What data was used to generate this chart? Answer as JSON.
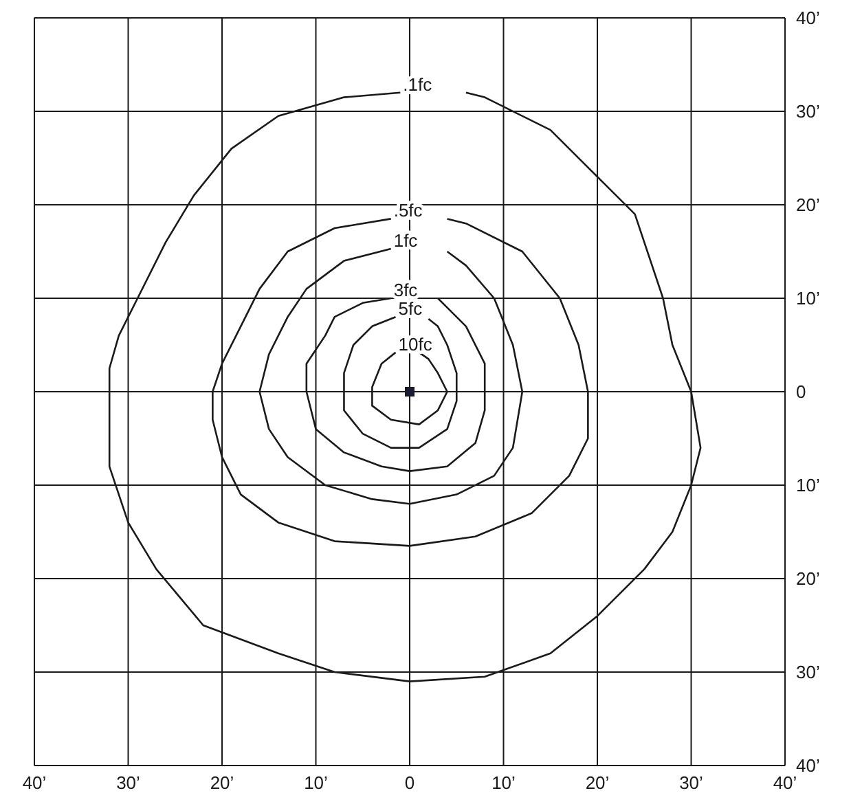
{
  "chart_data": {
    "type": "line",
    "xlim": [
      -40,
      40
    ],
    "ylim": [
      -40,
      40
    ],
    "xticks": [
      {
        "value": -40,
        "label": "40’"
      },
      {
        "value": -30,
        "label": "30’"
      },
      {
        "value": -20,
        "label": "20’"
      },
      {
        "value": -10,
        "label": "10’"
      },
      0,
      {
        "value": 10,
        "label": "10’"
      },
      {
        "value": 20,
        "label": "20’"
      },
      {
        "value": 30,
        "label": "30’"
      },
      {
        "value": 40,
        "label": "40’"
      }
    ],
    "yticks": [
      {
        "value": -40,
        "label": "40’"
      },
      {
        "value": -30,
        "label": "30’"
      },
      {
        "value": -20,
        "label": "20’"
      },
      {
        "value": -10,
        "label": "10’"
      },
      0,
      {
        "value": 10,
        "label": "10’"
      },
      {
        "value": 20,
        "label": "20’"
      },
      {
        "value": 30,
        "label": "30’"
      },
      {
        "value": 40,
        "label": "40’"
      }
    ],
    "grid": true,
    "legend": false,
    "marker": "none",
    "line_style": "solid",
    "series": [
      {
        "name": ".1fc",
        "color": "#1a1a1a",
        "x": [
          -1,
          -7,
          -14,
          -19,
          -23,
          -26,
          -29,
          -31,
          -32,
          -32,
          -32,
          -30,
          -27,
          -22,
          -14,
          -8,
          0,
          8,
          15,
          20,
          25,
          28,
          30,
          31,
          30,
          28,
          27,
          24,
          19,
          15,
          8,
          6
        ],
        "values": [
          32,
          31.5,
          29.5,
          26,
          21,
          16,
          10,
          6,
          2.5,
          -2,
          -8,
          -14,
          -19,
          -25,
          -28,
          -30,
          -31,
          -30.5,
          -28,
          -24,
          -19,
          -15,
          -10,
          -6,
          0,
          5,
          10,
          19,
          24,
          28,
          31.5,
          32
        ]
      },
      {
        "name": ".5fc",
        "color": "#1a1a1a",
        "x": [
          -2,
          -8,
          -13,
          -16,
          -18,
          -20,
          -21,
          -21,
          -20,
          -18,
          -14,
          -8,
          0,
          7,
          13,
          17,
          19,
          19,
          18,
          16,
          12,
          6,
          4
        ],
        "values": [
          18.5,
          17.5,
          15,
          11,
          7,
          3,
          0,
          -3,
          -7,
          -11,
          -14,
          -16,
          -16.5,
          -15.5,
          -13,
          -9,
          -5,
          0,
          5,
          10,
          15,
          18,
          18.5
        ]
      },
      {
        "name": "1fc",
        "color": "#1a1a1a",
        "x": [
          -2,
          -7,
          -11,
          -13,
          -15,
          -16,
          -15,
          -13,
          -9,
          -4,
          0,
          5,
          9,
          11,
          12,
          11,
          9,
          6,
          4
        ],
        "values": [
          15.3,
          14,
          11,
          8,
          4,
          0,
          -4,
          -7,
          -10,
          -11.5,
          -12,
          -11,
          -9,
          -6,
          0,
          5,
          10,
          13.5,
          15
        ]
      },
      {
        "name": "3fc",
        "color": "#1a1a1a",
        "x": [
          -2,
          -5,
          -8,
          -9,
          -11,
          -11,
          -10,
          -7,
          -3,
          0,
          4,
          7,
          8,
          8,
          6,
          4,
          3
        ],
        "values": [
          10,
          9.5,
          8,
          6,
          3,
          0,
          -4,
          -6.5,
          -8,
          -8.5,
          -8,
          -5.5,
          -2,
          3,
          7,
          9,
          10
        ]
      },
      {
        "name": "5fc",
        "color": "#1a1a1a",
        "x": [
          -1.5,
          -4,
          -6,
          -7,
          -7,
          -5,
          -2,
          1,
          4,
          5,
          5,
          4,
          3,
          2
        ],
        "values": [
          8,
          7,
          5,
          2,
          -2,
          -4.5,
          -6,
          -6,
          -4,
          -1,
          2,
          5,
          7,
          7.8
        ]
      },
      {
        "name": "10fc",
        "color": "#1a1a1a",
        "x": [
          -1.5,
          -3,
          -4,
          -4,
          -2,
          1,
          3,
          4,
          3,
          2,
          1
        ],
        "values": [
          4.2,
          3,
          0.5,
          -1.5,
          -3,
          -3.5,
          -2,
          0,
          2,
          3.5,
          4.2
        ]
      },
      {
        "type": "scatter",
        "marker": "square",
        "color": "#1a1a3a",
        "x": [
          0
        ],
        "values": [
          0
        ]
      }
    ]
  }
}
